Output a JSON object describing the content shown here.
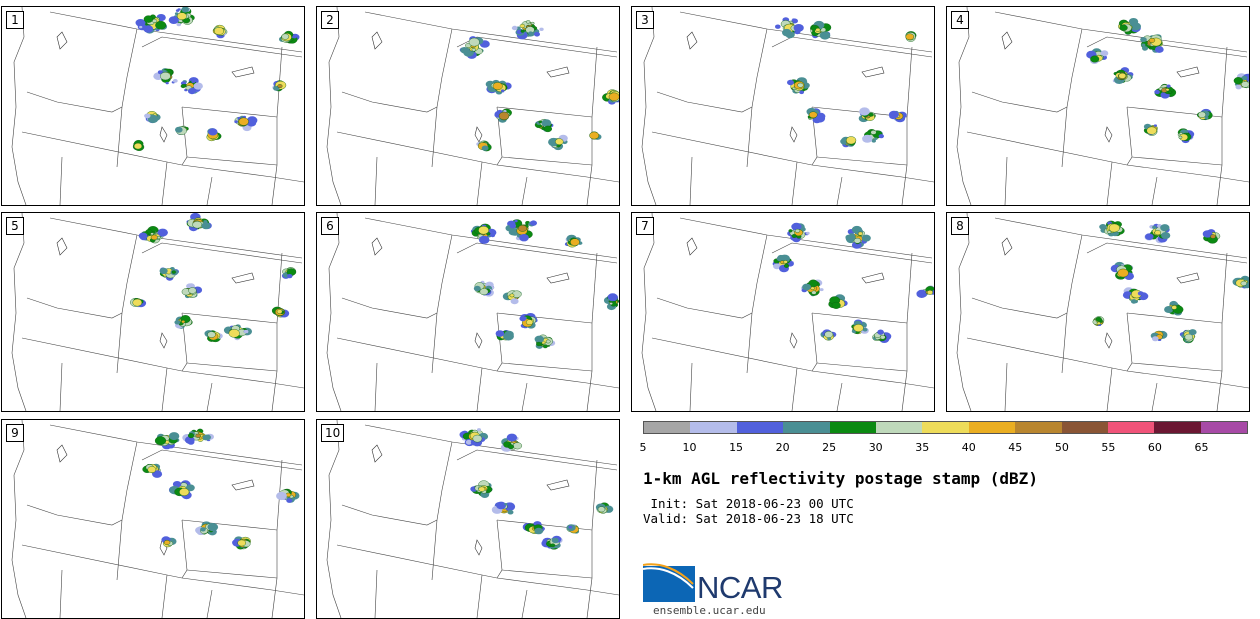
{
  "panels": [
    {
      "label": "1",
      "storms": [
        [
          0.5,
          0.08,
          14
        ],
        [
          0.6,
          0.05,
          12
        ],
        [
          0.72,
          0.12,
          7
        ],
        [
          0.55,
          0.35,
          10
        ],
        [
          0.62,
          0.4,
          9
        ],
        [
          0.5,
          0.55,
          6
        ],
        [
          0.8,
          0.58,
          9
        ],
        [
          0.7,
          0.65,
          6
        ],
        [
          0.95,
          0.15,
          8
        ],
        [
          0.92,
          0.4,
          5
        ],
        [
          0.45,
          0.7,
          4
        ],
        [
          0.6,
          0.62,
          5
        ]
      ]
    },
    {
      "label": "2",
      "storms": [
        [
          0.52,
          0.2,
          13
        ],
        [
          0.7,
          0.1,
          14
        ],
        [
          0.6,
          0.4,
          9
        ],
        [
          0.62,
          0.55,
          7
        ],
        [
          0.75,
          0.6,
          8
        ],
        [
          0.8,
          0.68,
          7
        ],
        [
          0.98,
          0.45,
          9
        ],
        [
          0.55,
          0.7,
          5
        ],
        [
          0.92,
          0.65,
          4
        ]
      ]
    },
    {
      "label": "3",
      "storms": [
        [
          0.52,
          0.1,
          12
        ],
        [
          0.62,
          0.12,
          10
        ],
        [
          0.55,
          0.4,
          10
        ],
        [
          0.6,
          0.55,
          8
        ],
        [
          0.78,
          0.55,
          7
        ],
        [
          0.8,
          0.65,
          8
        ],
        [
          0.72,
          0.68,
          6
        ],
        [
          0.92,
          0.15,
          4
        ],
        [
          0.88,
          0.55,
          5
        ]
      ]
    },
    {
      "label": "4",
      "storms": [
        [
          0.6,
          0.1,
          10
        ],
        [
          0.68,
          0.18,
          12
        ],
        [
          0.5,
          0.25,
          8
        ],
        [
          0.58,
          0.35,
          10
        ],
        [
          0.72,
          0.42,
          9
        ],
        [
          0.68,
          0.62,
          7
        ],
        [
          0.78,
          0.65,
          8
        ],
        [
          0.98,
          0.38,
          9
        ],
        [
          0.85,
          0.55,
          5
        ]
      ]
    },
    {
      "label": "5",
      "storms": [
        [
          0.5,
          0.12,
          12
        ],
        [
          0.65,
          0.05,
          10
        ],
        [
          0.55,
          0.3,
          8
        ],
        [
          0.62,
          0.4,
          9
        ],
        [
          0.6,
          0.55,
          7
        ],
        [
          0.78,
          0.6,
          10
        ],
        [
          0.7,
          0.62,
          6
        ],
        [
          0.95,
          0.3,
          6
        ],
        [
          0.92,
          0.5,
          5
        ],
        [
          0.45,
          0.45,
          4
        ]
      ]
    },
    {
      "label": "6",
      "storms": [
        [
          0.55,
          0.1,
          11
        ],
        [
          0.68,
          0.08,
          14
        ],
        [
          0.85,
          0.15,
          7
        ],
        [
          0.55,
          0.38,
          9
        ],
        [
          0.65,
          0.42,
          8
        ],
        [
          0.7,
          0.55,
          8
        ],
        [
          0.75,
          0.65,
          9
        ],
        [
          0.62,
          0.62,
          6
        ],
        [
          0.98,
          0.45,
          7
        ]
      ]
    },
    {
      "label": "7",
      "storms": [
        [
          0.55,
          0.1,
          10
        ],
        [
          0.75,
          0.12,
          12
        ],
        [
          0.5,
          0.25,
          9
        ],
        [
          0.6,
          0.38,
          10
        ],
        [
          0.68,
          0.45,
          7
        ],
        [
          0.75,
          0.58,
          8
        ],
        [
          0.82,
          0.62,
          7
        ],
        [
          0.98,
          0.4,
          7
        ],
        [
          0.65,
          0.62,
          5
        ]
      ]
    },
    {
      "label": "8",
      "storms": [
        [
          0.55,
          0.08,
          12
        ],
        [
          0.7,
          0.1,
          11
        ],
        [
          0.88,
          0.12,
          8
        ],
        [
          0.58,
          0.3,
          10
        ],
        [
          0.62,
          0.42,
          9
        ],
        [
          0.75,
          0.48,
          8
        ],
        [
          0.8,
          0.62,
          8
        ],
        [
          0.7,
          0.62,
          6
        ],
        [
          0.98,
          0.35,
          7
        ],
        [
          0.5,
          0.55,
          5
        ]
      ]
    },
    {
      "label": "9",
      "storms": [
        [
          0.55,
          0.1,
          10
        ],
        [
          0.65,
          0.08,
          12
        ],
        [
          0.5,
          0.25,
          8
        ],
        [
          0.6,
          0.35,
          10
        ],
        [
          0.68,
          0.55,
          8
        ],
        [
          0.8,
          0.62,
          8
        ],
        [
          0.95,
          0.38,
          8
        ],
        [
          0.55,
          0.62,
          5
        ]
      ]
    },
    {
      "label": "10",
      "storms": [
        [
          0.52,
          0.08,
          11
        ],
        [
          0.65,
          0.12,
          9
        ],
        [
          0.55,
          0.35,
          10
        ],
        [
          0.62,
          0.45,
          8
        ],
        [
          0.72,
          0.55,
          8
        ],
        [
          0.78,
          0.62,
          7
        ],
        [
          0.95,
          0.45,
          6
        ],
        [
          0.85,
          0.55,
          5
        ]
      ]
    }
  ],
  "colorbar": {
    "colors": [
      "#a6a6a6",
      "#b4bcea",
      "#5160dc",
      "#4a8f94",
      "#0b8a12",
      "#bfd9bb",
      "#eedc5a",
      "#eaae22",
      "#b9862f",
      "#8a5535",
      "#f05379",
      "#6b1732",
      "#a74aa6"
    ],
    "ticks": [
      "5",
      "10",
      "15",
      "20",
      "25",
      "30",
      "35",
      "40",
      "45",
      "50",
      "55",
      "60",
      "65"
    ]
  },
  "title": "1-km AGL reflectivity postage stamp (dBZ)",
  "init": " Init: Sat 2018-06-23 00 UTC",
  "valid": "Valid: Sat 2018-06-23 18 UTC",
  "logo": {
    "text": "NCAR",
    "url": "ensemble.ucar.edu"
  }
}
